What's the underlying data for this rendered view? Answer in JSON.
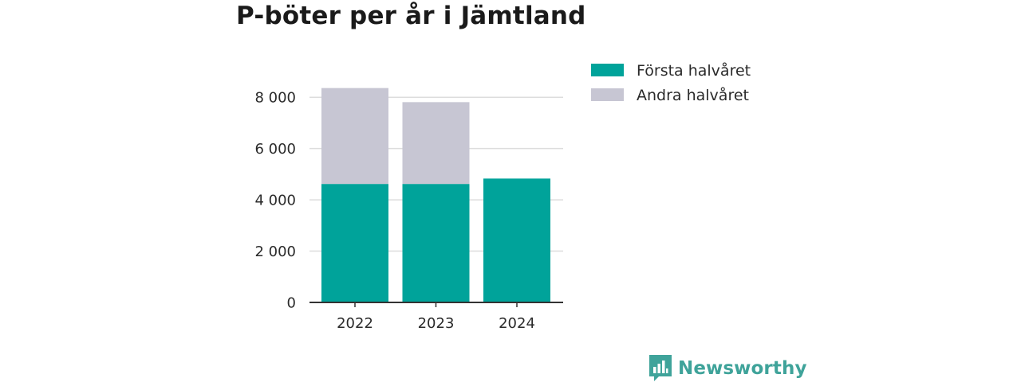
{
  "chart_data": {
    "type": "bar",
    "stacked": true,
    "title": "P-böter per år i Jämtland",
    "categories": [
      "2022",
      "2023",
      "2024"
    ],
    "series": [
      {
        "name": "Första halvåret",
        "color": "#00a39a",
        "values": [
          4620,
          4620,
          4830
        ]
      },
      {
        "name": "Andra halvåret",
        "color": "#c7c6d3",
        "values": [
          3740,
          3190,
          0
        ]
      }
    ],
    "ylim": [
      0,
      9000
    ],
    "yticks": [
      0,
      2000,
      4000,
      6000,
      8000
    ],
    "ytick_labels": [
      "0",
      "2 000",
      "4 000",
      "6 000",
      "8 000"
    ],
    "xlabel": "",
    "ylabel": "",
    "grid": true,
    "legend_position": "top-right"
  },
  "branding": {
    "name": "Newsworthy",
    "icon": "bar-chart-speech-bubble-icon",
    "color": "#3fa39a"
  }
}
